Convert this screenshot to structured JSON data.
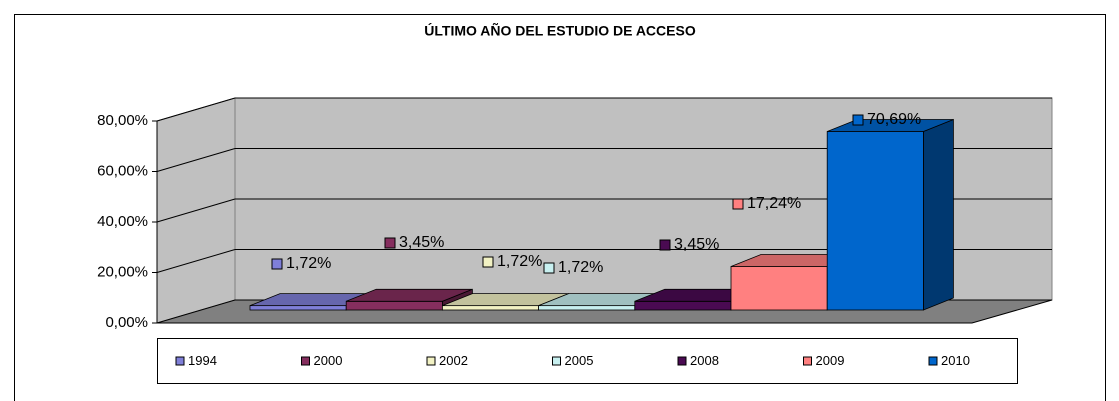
{
  "chart_data": {
    "type": "bar",
    "title": "ÚLTIMO AÑO DEL ESTUDIO DE ACCESO",
    "ylim": [
      0,
      80
    ],
    "yticks": [
      {
        "value": 0,
        "label": "0,00%"
      },
      {
        "value": 20,
        "label": "20,00%"
      },
      {
        "value": 40,
        "label": "40,00%"
      },
      {
        "value": 60,
        "label": "60,00%"
      },
      {
        "value": 80,
        "label": "80,00%"
      }
    ],
    "grid": true,
    "legend": "bottom",
    "series": [
      {
        "name": "1994",
        "color": "#7f7fd8",
        "values": [
          1.72
        ],
        "value_labels": [
          "1,72%"
        ]
      },
      {
        "name": "2000",
        "color": "#852e5e",
        "values": [
          3.45
        ],
        "value_labels": [
          "3,45%"
        ]
      },
      {
        "name": "2002",
        "color": "#f2f2c4",
        "values": [
          1.72
        ],
        "value_labels": [
          "1,72%"
        ]
      },
      {
        "name": "2005",
        "color": "#c8f0f0",
        "values": [
          1.72
        ],
        "value_labels": [
          "1,72%"
        ]
      },
      {
        "name": "2008",
        "color": "#4a0a52",
        "values": [
          3.45
        ],
        "value_labels": [
          "3,45%"
        ]
      },
      {
        "name": "2009",
        "color": "#ff8080",
        "values": [
          17.24
        ],
        "value_labels": [
          "17,24%"
        ]
      },
      {
        "name": "2010",
        "color": "#0066cc",
        "values": [
          70.69
        ],
        "value_labels": [
          "70,69%"
        ]
      }
    ]
  }
}
